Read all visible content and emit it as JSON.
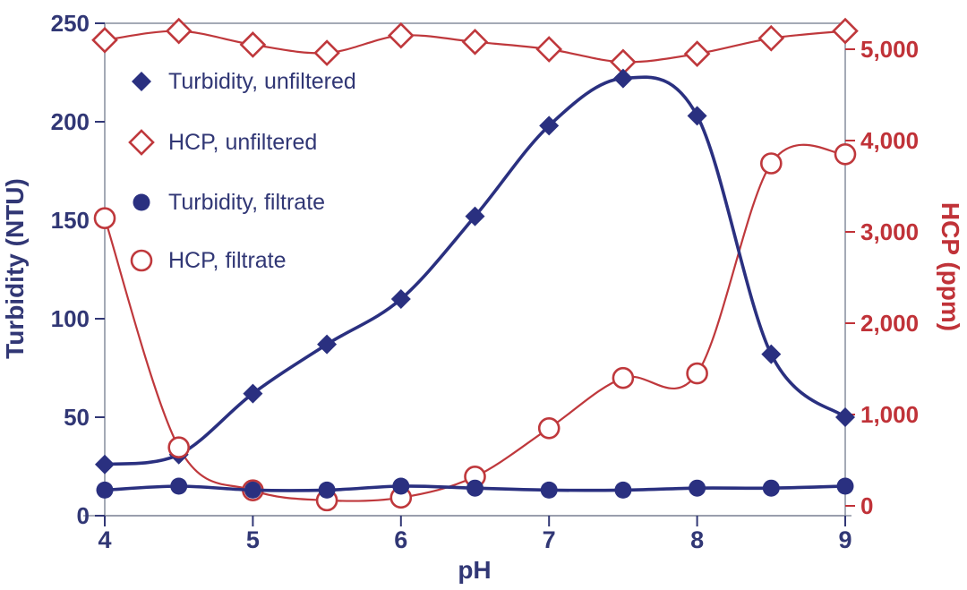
{
  "figure": {
    "background": "#ffffff"
  },
  "colors": {
    "navy": "#2A3080",
    "navy_text": "#313775",
    "red": "#BF383C",
    "red_text": "#C03238",
    "frame": "#8E94A3",
    "marker_open_fill": "#ffffff"
  },
  "chart_data": {
    "type": "line",
    "title": "",
    "x_axis": {
      "label": "pH",
      "min": 4,
      "max": 9,
      "ticks": [
        {
          "value": 4,
          "label": "4"
        },
        {
          "value": 5,
          "label": "5"
        },
        {
          "value": 6,
          "label": "6"
        },
        {
          "value": 7,
          "label": "7"
        },
        {
          "value": 8,
          "label": "8"
        },
        {
          "value": 9,
          "label": "9"
        }
      ]
    },
    "left_axis": {
      "label": "Turbidity (NTU)",
      "min": 0,
      "max": 250,
      "ticks": [
        {
          "value": 0,
          "label": "0"
        },
        {
          "value": 50,
          "label": "50"
        },
        {
          "value": 100,
          "label": "100"
        },
        {
          "value": 150,
          "label": "150"
        },
        {
          "value": 200,
          "label": "200"
        },
        {
          "value": 250,
          "label": "250"
        }
      ]
    },
    "right_axis": {
      "label": "HCP (ppm)",
      "min": 0,
      "max": 5000,
      "ticks": [
        {
          "value": 0,
          "label": "0"
        },
        {
          "value": 1000,
          "label": "1,000"
        },
        {
          "value": 2000,
          "label": "2,000"
        },
        {
          "value": 3000,
          "label": "3,000"
        },
        {
          "value": 4000,
          "label": "4,000"
        },
        {
          "value": 5000,
          "label": "5,000"
        }
      ]
    },
    "grid": false,
    "legend_position": "top-left-inside",
    "line_style": "smooth",
    "x_values": [
      4,
      4.5,
      5,
      5.5,
      6,
      6.5,
      7,
      7.5,
      8,
      8.5,
      9
    ],
    "series": [
      {
        "name": "Turbidity, unfiltered",
        "axis": "left",
        "marker": "diamond-filled",
        "color_key": "navy",
        "values": [
          26,
          31,
          62,
          87,
          110,
          152,
          198,
          222,
          203,
          82,
          50
        ]
      },
      {
        "name": "HCP, unfiltered",
        "axis": "right",
        "marker": "diamond-open",
        "color_key": "red",
        "values": [
          5100,
          5200,
          5050,
          4960,
          5150,
          5080,
          5000,
          4860,
          4950,
          5120,
          5200
        ]
      },
      {
        "name": "Turbidity, filtrate",
        "axis": "left",
        "marker": "circle-filled",
        "color_key": "navy",
        "values": [
          13,
          15,
          13,
          13,
          15,
          14,
          13,
          13,
          14,
          14,
          15
        ]
      },
      {
        "name": "HCP, filtrate",
        "axis": "right",
        "marker": "circle-open",
        "color_key": "red",
        "values": [
          3150,
          640,
          170,
          60,
          90,
          320,
          850,
          1400,
          1450,
          3750,
          3850
        ]
      }
    ]
  }
}
